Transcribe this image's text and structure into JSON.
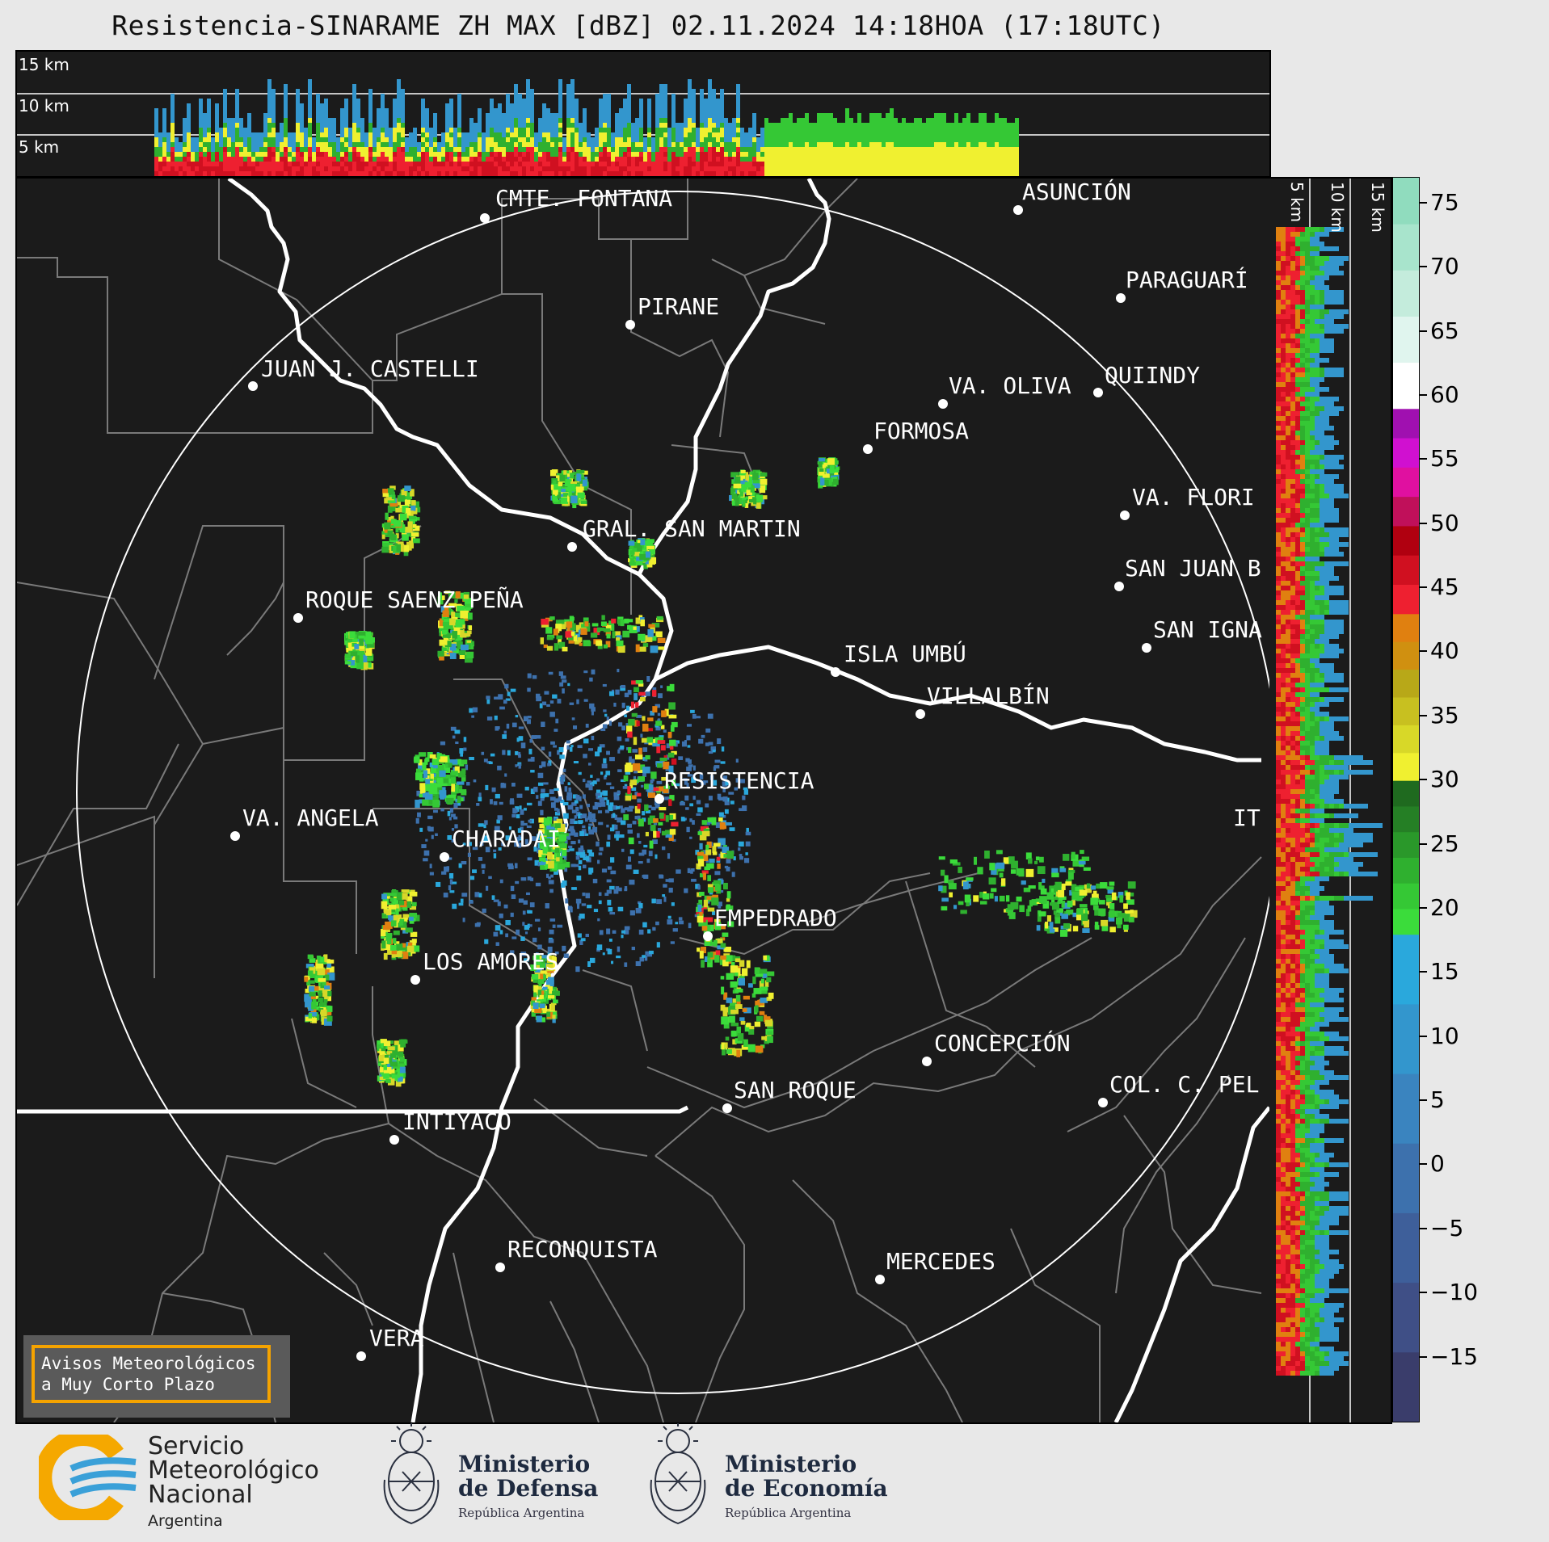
{
  "title": "Resistencia-SINARAME ZH MAX [dBZ] 02.11.2024 14:18HOA (17:18UTC)",
  "top_panel": {
    "labels": [
      "15 km",
      "10 km",
      "5 km"
    ]
  },
  "side_panel": {
    "labels": [
      "5 km",
      "10 km",
      "15 km"
    ]
  },
  "colorbar": {
    "unit": "dBZ",
    "ticks": [
      "75",
      "70",
      "65",
      "60",
      "55",
      "50",
      "45",
      "40",
      "35",
      "30",
      "25",
      "20",
      "15",
      "10",
      "5",
      "0",
      "−5",
      "−10",
      "−15"
    ],
    "range": [
      -20,
      77
    ],
    "bands": [
      {
        "from": -20,
        "to": 18,
        "colors": [
          "#3a3d6b",
          "#3f4f86",
          "#3e5f9a",
          "#3d71ad",
          "#3a84bf",
          "#3396cd",
          "#2aa8dc"
        ]
      },
      {
        "from": 18,
        "to": 30,
        "colors": [
          "#3bdc3b",
          "#35c835",
          "#2fb02f",
          "#2a982a",
          "#257f25",
          "#1f6a1f"
        ]
      },
      {
        "from": 30,
        "to": 43,
        "colors": [
          "#f0f030",
          "#d8d828",
          "#c8c020",
          "#b8a818",
          "#d09010",
          "#e08010"
        ]
      },
      {
        "from": 43,
        "to": 59,
        "colors": [
          "#ee2030",
          "#d01020",
          "#b00010",
          "#c0105a",
          "#e010a0",
          "#d010d0",
          "#a010b0"
        ]
      },
      {
        "from": 59,
        "to": 77,
        "colors": [
          "#ffffff",
          "#e0f5ee",
          "#c4ecdc",
          "#a8e4cc",
          "#90dcbe"
        ]
      }
    ]
  },
  "cities": [
    {
      "name": "CMTE. FONTANA"
    },
    {
      "name": "ASUNCIÓN"
    },
    {
      "name": "PARAGUARÍ"
    },
    {
      "name": "PIRANE"
    },
    {
      "name": "JUAN J. CASTELLI"
    },
    {
      "name": "VA. OLIVA"
    },
    {
      "name": "QUIINDY"
    },
    {
      "name": "FORMOSA"
    },
    {
      "name": "VA. FLORI"
    },
    {
      "name": "GRAL. SAN MARTIN"
    },
    {
      "name": "SAN JUAN B"
    },
    {
      "name": "ROQUE SAENZ PEÑA"
    },
    {
      "name": "SAN IGNA"
    },
    {
      "name": "ISLA UMBÚ"
    },
    {
      "name": "VILLALBÍN"
    },
    {
      "name": "RESISTENCIA"
    },
    {
      "name": "VA. ANGELA"
    },
    {
      "name": "CHARADAI"
    },
    {
      "name": "IT"
    },
    {
      "name": "EMPEDRADO"
    },
    {
      "name": "LOS AMORES"
    },
    {
      "name": "CONCEPCIÓN"
    },
    {
      "name": "SAN ROQUE"
    },
    {
      "name": "COL. C. PEL"
    },
    {
      "name": "INTIYACO"
    },
    {
      "name": "RECONQUISTA"
    },
    {
      "name": "MERCEDES"
    },
    {
      "name": "VERA"
    }
  ],
  "avisos": {
    "line1": "Avisos Meteorológicos",
    "line2": "a Muy Corto Plazo"
  },
  "footer": {
    "smn": {
      "line1": "Servicio",
      "line2": "Meteorológico",
      "line3": "Nacional",
      "line4": "Argentina"
    },
    "defensa": {
      "line1": "Ministerio",
      "line2": "de Defensa",
      "sub": "República Argentina"
    },
    "economia": {
      "line1": "Ministerio",
      "line2": "de Economía",
      "sub": "República Argentina"
    }
  }
}
